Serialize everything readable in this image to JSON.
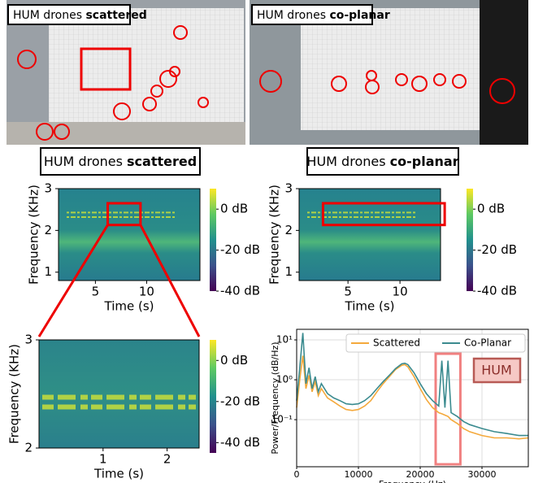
{
  "photos": [
    {
      "label": "HUM drones",
      "emphasis": "scattered"
    },
    {
      "label": "HUM drones",
      "emphasis": "co-planar"
    }
  ],
  "headers": [
    {
      "label": "HUM drones",
      "emphasis": "scattered"
    },
    {
      "label": "HUM drones",
      "emphasis": "co-planar"
    }
  ],
  "chart_data": [
    {
      "type": "spectrogram",
      "xlabel": "Time (s)",
      "ylabel": "Frequency (KHz)",
      "xlim": [
        1.4,
        15.2
      ],
      "xticks": [
        5,
        10
      ],
      "ylim": [
        0.8,
        3
      ],
      "yticks": [
        1,
        2,
        3
      ],
      "clim": [
        -40,
        10
      ],
      "cticks": [
        {
          "value": 0,
          "label": "0 dB"
        },
        {
          "value": -20,
          "label": "-20 dB"
        },
        {
          "value": -40,
          "label": "-40 dB"
        }
      ],
      "zoom_box": {
        "xlim": [
          6.2,
          9.4
        ],
        "ylim": [
          2.13,
          2.65
        ]
      }
    },
    {
      "type": "spectrogram",
      "xlabel": "Time (s)",
      "ylabel": "Frequency (KHz)",
      "xlim": [
        0.3,
        13.9
      ],
      "xticks": [
        5,
        10
      ],
      "ylim": [
        0.8,
        3
      ],
      "yticks": [
        1,
        2,
        3
      ],
      "clim": [
        -40,
        10
      ],
      "cticks": [
        {
          "value": 0,
          "label": "0 dB"
        },
        {
          "value": -20,
          "label": "-20 dB"
        },
        {
          "value": -40,
          "label": "-40 dB"
        }
      ],
      "zoom_box": {
        "xlim": [
          2.6,
          14.3
        ],
        "ylim": [
          2.13,
          2.65
        ]
      }
    },
    {
      "type": "spectrogram",
      "xlabel": "Time (s)",
      "ylabel": "Frequency (KHz)",
      "xlim": [
        0,
        2.5
      ],
      "xticks": [
        1,
        2
      ],
      "ylim": [
        2,
        3
      ],
      "yticks": [
        2,
        3
      ],
      "clim": [
        -45,
        10
      ],
      "cticks": [
        {
          "value": 0,
          "label": "0 dB"
        },
        {
          "value": -20,
          "label": "-20 dB"
        },
        {
          "value": -40,
          "label": "-40 dB"
        }
      ]
    },
    {
      "type": "line",
      "xlabel": "Frequency (Hz)",
      "ylabel": "Power/Frequency (dB/Hz)",
      "log_y": true,
      "grid": true,
      "legend": "upper right",
      "xlim": [
        0,
        37500
      ],
      "xticks": [
        0,
        10000,
        20000,
        30000
      ],
      "ylim": [
        0.0066,
        18.4
      ],
      "yticks": [
        {
          "value": 0.1,
          "label": "10⁻¹"
        },
        {
          "value": 1,
          "label": "10⁰"
        },
        {
          "value": 10,
          "label": "10¹"
        }
      ],
      "highlight_xlim": [
        22500,
        26500
      ],
      "annotation": "HUM",
      "x": [
        0,
        500,
        1000,
        1500,
        2000,
        2500,
        3000,
        3500,
        4000,
        5000,
        6000,
        7000,
        8000,
        9000,
        10000,
        11000,
        12000,
        13000,
        14000,
        15000,
        16000,
        17000,
        17500,
        18000,
        19000,
        20000,
        21000,
        22000,
        23000,
        23500,
        24000,
        24500,
        25000,
        26000,
        27000,
        28000,
        30000,
        32000,
        34000,
        36000,
        37500
      ],
      "series": [
        {
          "name": "Scattered",
          "color": "#f4a93c",
          "values": [
            0.2,
            1,
            4,
            0.6,
            1.3,
            0.5,
            0.9,
            0.4,
            0.6,
            0.35,
            0.28,
            0.22,
            0.18,
            0.17,
            0.18,
            0.22,
            0.3,
            0.5,
            0.8,
            1.2,
            1.8,
            2.3,
            2.4,
            2.1,
            1.2,
            0.6,
            0.32,
            0.2,
            0.15,
            0.14,
            0.13,
            0.12,
            0.1,
            0.08,
            0.06,
            0.05,
            0.04,
            0.035,
            0.035,
            0.033,
            0.035
          ]
        },
        {
          "name": "Co-Planar",
          "color": "#3b8b8f",
          "values": [
            0.3,
            2,
            15,
            0.8,
            2,
            0.6,
            1.2,
            0.5,
            0.8,
            0.45,
            0.35,
            0.3,
            0.25,
            0.24,
            0.25,
            0.3,
            0.4,
            0.6,
            0.9,
            1.3,
            1.9,
            2.5,
            2.6,
            2.4,
            1.5,
            0.8,
            0.45,
            0.3,
            0.22,
            3,
            0.2,
            3,
            0.15,
            0.12,
            0.09,
            0.075,
            0.06,
            0.05,
            0.045,
            0.04,
            0.04
          ]
        }
      ]
    }
  ]
}
